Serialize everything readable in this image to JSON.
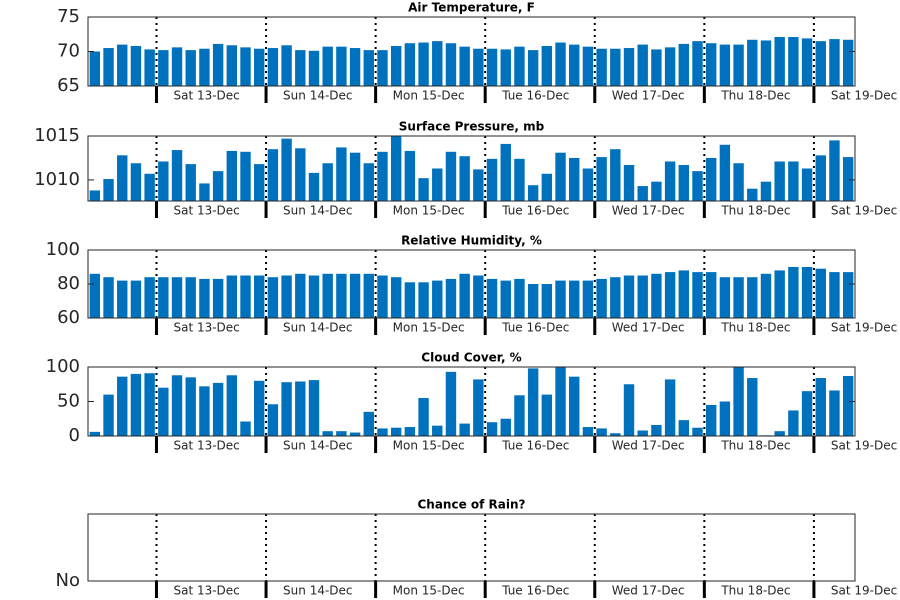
{
  "chart_data": [
    {
      "type": "bar",
      "title": "Air Temperature, F",
      "color": "#0072bd",
      "ylim": [
        65,
        75
      ],
      "yticks": [
        65,
        70,
        75
      ],
      "categories": [
        null,
        null,
        null,
        null,
        null,
        "Sat 13-Dec",
        null,
        null,
        null,
        null,
        null,
        null,
        null,
        "Sun 14-Dec",
        null,
        null,
        null,
        null,
        null,
        null,
        null,
        "Mon 15-Dec",
        null,
        null,
        null,
        null,
        null,
        null,
        null,
        "Tue 16-Dec",
        null,
        null,
        null,
        null,
        null,
        null,
        null,
        "Wed 17-Dec",
        null,
        null,
        null,
        null,
        null,
        null,
        null,
        "Thu 18-Dec",
        null,
        null,
        null,
        null,
        null,
        null,
        null,
        "Sat 19-Dec",
        null,
        null
      ],
      "values": [
        70.0,
        70.5,
        71.0,
        70.8,
        70.3,
        70.2,
        70.6,
        70.2,
        70.4,
        71.1,
        70.9,
        70.6,
        70.4,
        70.5,
        70.9,
        70.2,
        70.1,
        70.7,
        70.7,
        70.5,
        70.2,
        70.2,
        70.8,
        71.2,
        71.3,
        71.5,
        71.2,
        70.7,
        70.4,
        70.4,
        70.3,
        70.7,
        70.2,
        70.8,
        71.3,
        71.0,
        70.7,
        70.4,
        70.4,
        70.5,
        71.0,
        70.3,
        70.6,
        71.1,
        71.5,
        71.2,
        71.0,
        71.0,
        71.7,
        71.6,
        72.1,
        72.1,
        71.9,
        71.5,
        71.8,
        71.7
      ]
    },
    {
      "type": "bar",
      "title": "Surface Pressure, mb",
      "color": "#0072bd",
      "ylim": [
        1007.6,
        1015
      ],
      "yticks": [
        1010,
        1015
      ],
      "categories": [
        null,
        null,
        null,
        null,
        null,
        "Sat 13-Dec",
        null,
        null,
        null,
        null,
        null,
        null,
        null,
        "Sun 14-Dec",
        null,
        null,
        null,
        null,
        null,
        null,
        null,
        "Mon 15-Dec",
        null,
        null,
        null,
        null,
        null,
        null,
        null,
        "Tue 16-Dec",
        null,
        null,
        null,
        null,
        null,
        null,
        null,
        "Wed 17-Dec",
        null,
        null,
        null,
        null,
        null,
        null,
        null,
        "Thu 18-Dec",
        null,
        null,
        null,
        null,
        null,
        null,
        null,
        "Sat 19-Dec",
        null,
        null
      ],
      "values": [
        1008.8,
        1010.1,
        1012.8,
        1011.9,
        1010.7,
        1012.1,
        1013.4,
        1011.8,
        1009.6,
        1011.0,
        1013.3,
        1013.2,
        1011.8,
        1013.5,
        1014.7,
        1013.6,
        1010.8,
        1011.9,
        1013.7,
        1013.1,
        1011.9,
        1013.2,
        1015.0,
        1013.3,
        1010.2,
        1011.3,
        1013.2,
        1012.7,
        1011.2,
        1012.4,
        1014.1,
        1012.4,
        1009.4,
        1010.7,
        1013.1,
        1012.5,
        1011.3,
        1012.6,
        1013.5,
        1011.7,
        1009.3,
        1009.8,
        1012.1,
        1011.7,
        1011.0,
        1012.5,
        1014.0,
        1011.9,
        1009.0,
        1009.8,
        1012.1,
        1012.1,
        1011.3,
        1012.8,
        1014.5,
        1012.6
      ]
    },
    {
      "type": "bar",
      "title": "Relative Humidity, %",
      "color": "#0072bd",
      "ylim": [
        60,
        100
      ],
      "yticks": [
        60,
        80,
        100
      ],
      "categories": [
        null,
        null,
        null,
        null,
        null,
        "Sat 13-Dec",
        null,
        null,
        null,
        null,
        null,
        null,
        null,
        "Sun 14-Dec",
        null,
        null,
        null,
        null,
        null,
        null,
        null,
        "Mon 15-Dec",
        null,
        null,
        null,
        null,
        null,
        null,
        null,
        "Tue 16-Dec",
        null,
        null,
        null,
        null,
        null,
        null,
        null,
        "Wed 17-Dec",
        null,
        null,
        null,
        null,
        null,
        null,
        null,
        "Thu 18-Dec",
        null,
        null,
        null,
        null,
        null,
        null,
        null,
        "Sat 19-Dec",
        null,
        null
      ],
      "values": [
        86,
        84,
        82,
        82,
        84,
        84,
        84,
        84,
        83,
        83,
        85,
        85,
        85,
        84,
        85,
        86,
        85,
        86,
        86,
        86,
        86,
        85,
        84,
        81,
        81,
        82,
        83,
        86,
        85,
        83,
        82,
        83,
        80,
        80,
        82,
        82,
        82,
        83,
        84,
        85,
        85,
        86,
        87,
        88,
        87,
        87,
        84,
        84,
        84,
        86,
        88,
        90,
        90,
        89,
        87,
        87
      ]
    },
    {
      "type": "bar",
      "title": "Cloud Cover, %",
      "color": "#0072bd",
      "ylim": [
        0,
        100
      ],
      "yticks": [
        0,
        50,
        100
      ],
      "categories": [
        null,
        null,
        null,
        null,
        null,
        "Sat 13-Dec",
        null,
        null,
        null,
        null,
        null,
        null,
        null,
        "Sun 14-Dec",
        null,
        null,
        null,
        null,
        null,
        null,
        null,
        "Mon 15-Dec",
        null,
        null,
        null,
        null,
        null,
        null,
        null,
        "Tue 16-Dec",
        null,
        null,
        null,
        null,
        null,
        null,
        null,
        "Wed 17-Dec",
        null,
        null,
        null,
        null,
        null,
        null,
        null,
        "Thu 18-Dec",
        null,
        null,
        null,
        null,
        null,
        null,
        null,
        "Sat 19-Dec",
        null,
        null
      ],
      "values": [
        6,
        60,
        86,
        90,
        91,
        70,
        88,
        85,
        72,
        77,
        88,
        21,
        80,
        46,
        78,
        79,
        81,
        7,
        7,
        5,
        35,
        11,
        12,
        13,
        55,
        15,
        93,
        18,
        82,
        20,
        25,
        59,
        98,
        60,
        100,
        86,
        13,
        11,
        4,
        75,
        8,
        16,
        82,
        23,
        12,
        45,
        50,
        100,
        84,
        1,
        7,
        37,
        65,
        84,
        66,
        87
      ]
    },
    {
      "type": "bar",
      "title": "Chance of Rain?",
      "color": "#0072bd",
      "ylim": [
        0,
        1
      ],
      "yticks": [
        {
          "value": 0,
          "label": "No"
        }
      ],
      "categories": [
        null,
        null,
        null,
        null,
        null,
        "Sat 13-Dec",
        null,
        null,
        null,
        null,
        null,
        null,
        null,
        "Sun 14-Dec",
        null,
        null,
        null,
        null,
        null,
        null,
        null,
        "Mon 15-Dec",
        null,
        null,
        null,
        null,
        null,
        null,
        null,
        "Tue 16-Dec",
        null,
        null,
        null,
        null,
        null,
        null,
        null,
        "Wed 17-Dec",
        null,
        null,
        null,
        null,
        null,
        null,
        null,
        "Thu 18-Dec",
        null,
        null,
        null,
        null,
        null,
        null,
        null,
        "Sat 19-Dec",
        null,
        null
      ],
      "values": [
        0,
        0,
        0,
        0,
        0,
        0,
        0,
        0,
        0,
        0,
        0,
        0,
        0,
        0,
        0,
        0,
        0,
        0,
        0,
        0,
        0,
        0,
        0,
        0,
        0,
        0,
        0,
        0,
        0,
        0,
        0,
        0,
        0,
        0,
        0,
        0,
        0,
        0,
        0,
        0,
        0,
        0,
        0,
        0,
        0,
        0,
        0,
        0,
        0,
        0,
        0,
        0,
        0,
        0,
        0,
        0
      ]
    }
  ]
}
